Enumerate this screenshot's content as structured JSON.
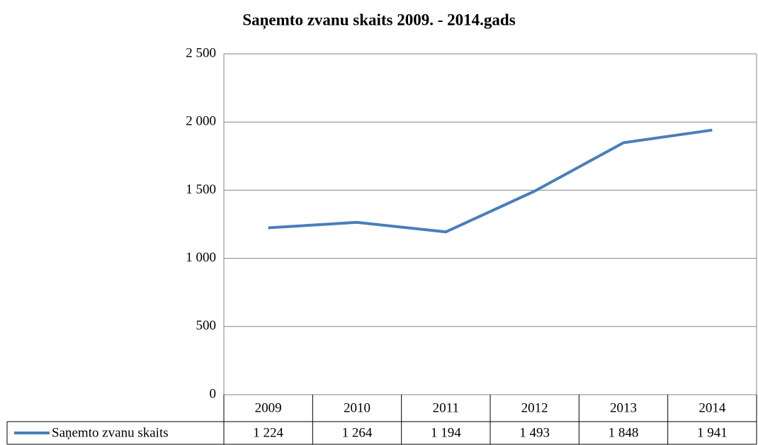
{
  "chart_data": {
    "type": "line",
    "title": "Saņemto zvanu skaits  2009. - 2014.gads",
    "categories": [
      "2009",
      "2010",
      "2011",
      "2012",
      "2013",
      "2014"
    ],
    "series": [
      {
        "name": "Saņemto zvanu skaits",
        "color": "#4a7ebb",
        "values": [
          1224,
          1264,
          1194,
          1493,
          1848,
          1941
        ],
        "value_labels": [
          "1 224",
          "1 264",
          "1 194",
          "1 493",
          "1 848",
          "1 941"
        ]
      }
    ],
    "ylim": [
      0,
      2500
    ],
    "yticks": [
      0,
      500,
      {
        "value": 1000,
        "label": "1 000"
      },
      {
        "value": 1500,
        "label": "1 500"
      },
      {
        "value": 2000,
        "label": "2 000"
      },
      {
        "value": 2500,
        "label": "2 500"
      }
    ],
    "grid": true
  }
}
